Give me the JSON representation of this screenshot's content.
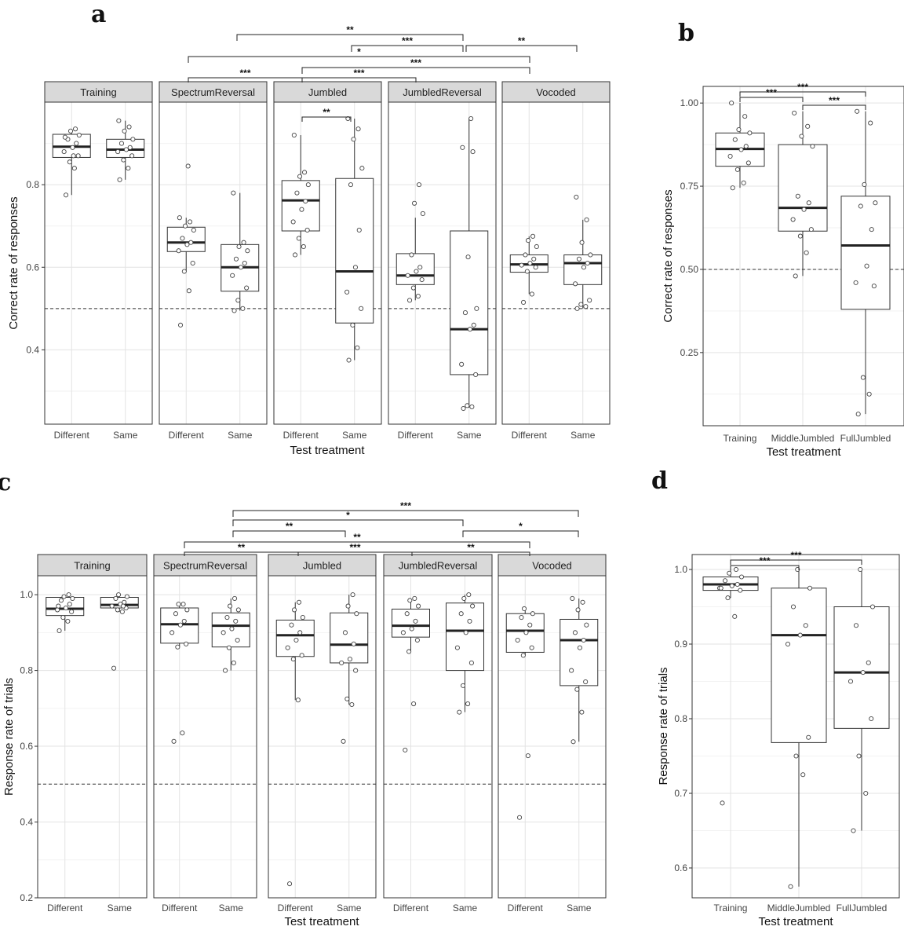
{
  "figure": {
    "panel_letters": [
      "a",
      "b",
      "c",
      "d"
    ]
  },
  "chart_data": [
    {
      "id": "a",
      "type": "boxplot",
      "panel_label": "a",
      "xlabel": "Test treatment",
      "ylabel": "Correct rate of responses",
      "ylim": [
        0.22,
        1.0
      ],
      "yticks": [
        0.4,
        0.6,
        0.8
      ],
      "yticklabels": [
        "0.4",
        "0.6",
        "0.8"
      ],
      "reference_line": 0.5,
      "grid": true,
      "facets": [
        {
          "name": "Training",
          "groups": [
            {
              "label": "Different",
              "q1": 0.866,
              "median": 0.892,
              "q3": 0.922,
              "whisker_low": 0.775,
              "whisker_high": 0.935,
              "points": [
                0.775,
                0.84,
                0.855,
                0.87,
                0.88,
                0.89,
                0.9,
                0.91,
                0.92,
                0.93,
                0.935,
                0.915,
                0.87
              ]
            },
            {
              "label": "Same",
              "q1": 0.866,
              "median": 0.885,
              "q3": 0.91,
              "whisker_low": 0.812,
              "whisker_high": 0.955,
              "points": [
                0.812,
                0.84,
                0.86,
                0.87,
                0.88,
                0.885,
                0.89,
                0.9,
                0.91,
                0.93,
                0.94,
                0.955
              ]
            }
          ]
        },
        {
          "name": "SpectrumReversal",
          "groups": [
            {
              "label": "Different",
              "q1": 0.638,
              "median": 0.66,
              "q3": 0.697,
              "whisker_low": 0.59,
              "whisker_high": 0.72,
              "points": [
                0.46,
                0.543,
                0.59,
                0.61,
                0.64,
                0.655,
                0.66,
                0.67,
                0.69,
                0.7,
                0.71,
                0.72,
                0.845
              ]
            },
            {
              "label": "Same",
              "q1": 0.542,
              "median": 0.6,
              "q3": 0.655,
              "whisker_low": 0.495,
              "whisker_high": 0.78,
              "points": [
                0.495,
                0.5,
                0.52,
                0.55,
                0.58,
                0.6,
                0.61,
                0.62,
                0.64,
                0.65,
                0.66,
                0.78
              ]
            }
          ]
        },
        {
          "name": "Jumbled",
          "groups": [
            {
              "label": "Different",
              "q1": 0.688,
              "median": 0.762,
              "q3": 0.81,
              "whisker_low": 0.63,
              "whisker_high": 0.92,
              "points": [
                0.63,
                0.65,
                0.67,
                0.69,
                0.71,
                0.74,
                0.76,
                0.78,
                0.8,
                0.82,
                0.83,
                0.92
              ]
            },
            {
              "label": "Same",
              "q1": 0.465,
              "median": 0.59,
              "q3": 0.815,
              "whisker_low": 0.375,
              "whisker_high": 0.96,
              "points": [
                0.375,
                0.405,
                0.46,
                0.5,
                0.54,
                0.6,
                0.69,
                0.8,
                0.84,
                0.91,
                0.935,
                0.96
              ]
            }
          ]
        },
        {
          "name": "JumbledReversal",
          "groups": [
            {
              "label": "Different",
              "q1": 0.558,
              "median": 0.58,
              "q3": 0.633,
              "whisker_low": 0.52,
              "whisker_high": 0.72,
              "points": [
                0.52,
                0.53,
                0.55,
                0.57,
                0.58,
                0.59,
                0.6,
                0.63,
                0.73,
                0.755,
                0.8
              ]
            },
            {
              "label": "Same",
              "q1": 0.34,
              "median": 0.45,
              "q3": 0.688,
              "whisker_low": 0.26,
              "whisker_high": 0.96,
              "points": [
                0.258,
                0.262,
                0.265,
                0.34,
                0.365,
                0.45,
                0.46,
                0.49,
                0.5,
                0.625,
                0.88,
                0.89,
                0.96
              ]
            }
          ]
        },
        {
          "name": "Vocoded",
          "groups": [
            {
              "label": "Different",
              "q1": 0.588,
              "median": 0.607,
              "q3": 0.63,
              "whisker_low": 0.535,
              "whisker_high": 0.675,
              "points": [
                0.515,
                0.535,
                0.59,
                0.6,
                0.605,
                0.61,
                0.62,
                0.63,
                0.65,
                0.665,
                0.675
              ]
            },
            {
              "label": "Same",
              "q1": 0.558,
              "median": 0.61,
              "q3": 0.63,
              "whisker_low": 0.5,
              "whisker_high": 0.715,
              "points": [
                0.5,
                0.505,
                0.51,
                0.52,
                0.56,
                0.6,
                0.61,
                0.62,
                0.63,
                0.66,
                0.715,
                0.77
              ]
            }
          ]
        }
      ],
      "significance": [
        "**",
        "***",
        "**",
        "*",
        "***",
        "***",
        "***",
        "**"
      ]
    },
    {
      "id": "b",
      "type": "boxplot",
      "panel_label": "b",
      "xlabel": "Test treatment",
      "ylabel": "Correct rate of responses",
      "ylim": [
        0.03,
        1.05
      ],
      "yticks": [
        0.25,
        0.5,
        0.75,
        1.0
      ],
      "yticklabels": [
        "0.25",
        "0.50",
        "0.75",
        "1.00"
      ],
      "reference_line": 0.5,
      "grid": true,
      "groups": [
        {
          "label": "Training",
          "q1": 0.81,
          "median": 0.862,
          "q3": 0.91,
          "whisker_low": 0.745,
          "whisker_high": 1.0,
          "points": [
            0.745,
            0.76,
            0.8,
            0.82,
            0.84,
            0.86,
            0.87,
            0.89,
            0.91,
            0.92,
            0.96,
            1.0
          ]
        },
        {
          "label": "MiddleJumbled",
          "q1": 0.615,
          "median": 0.685,
          "q3": 0.875,
          "whisker_low": 0.48,
          "whisker_high": 0.975,
          "points": [
            0.48,
            0.55,
            0.6,
            0.62,
            0.65,
            0.68,
            0.7,
            0.72,
            0.87,
            0.9,
            0.93,
            0.97
          ]
        },
        {
          "label": "FullJumbled",
          "q1": 0.38,
          "median": 0.572,
          "q3": 0.72,
          "whisker_low": 0.065,
          "whisker_high": 0.975,
          "points": [
            0.065,
            0.125,
            0.175,
            0.45,
            0.46,
            0.51,
            0.62,
            0.69,
            0.7,
            0.755,
            0.94,
            0.975
          ]
        }
      ],
      "significance": [
        "***",
        "***",
        "***"
      ]
    },
    {
      "id": "c",
      "type": "boxplot",
      "panel_label": "c",
      "xlabel": "Test treatment",
      "ylabel": "Response rate of trials",
      "ylim": [
        0.2,
        1.05
      ],
      "yticks": [
        0.2,
        0.4,
        0.6,
        0.8,
        1.0
      ],
      "yticklabels": [
        "0.2",
        "0.4",
        "0.6",
        "0.8",
        "1.0"
      ],
      "reference_line": 0.5,
      "grid": true,
      "facets": [
        {
          "name": "Training",
          "groups": [
            {
              "label": "Different",
              "q1": 0.945,
              "median": 0.963,
              "q3": 0.993,
              "whisker_low": 0.905,
              "whisker_high": 1.0,
              "points": [
                0.905,
                0.93,
                0.94,
                0.955,
                0.96,
                0.965,
                0.975,
                0.985,
                0.99,
                0.995,
                1.0,
                0.97
              ]
            },
            {
              "label": "Same",
              "q1": 0.965,
              "median": 0.973,
              "q3": 0.993,
              "whisker_low": 0.955,
              "whisker_high": 1.0,
              "points": [
                0.806,
                0.955,
                0.96,
                0.965,
                0.97,
                0.975,
                0.98,
                0.99,
                0.995,
                1.0,
                0.97
              ]
            }
          ]
        },
        {
          "name": "SpectrumReversal",
          "groups": [
            {
              "label": "Different",
              "q1": 0.872,
              "median": 0.922,
              "q3": 0.965,
              "whisker_low": 0.862,
              "whisker_high": 0.975,
              "points": [
                0.613,
                0.635,
                0.862,
                0.87,
                0.9,
                0.92,
                0.93,
                0.95,
                0.96,
                0.975,
                0.975
              ]
            },
            {
              "label": "Same",
              "q1": 0.862,
              "median": 0.918,
              "q3": 0.952,
              "whisker_low": 0.8,
              "whisker_high": 0.99,
              "points": [
                0.8,
                0.82,
                0.86,
                0.88,
                0.9,
                0.91,
                0.93,
                0.94,
                0.96,
                0.97,
                0.99
              ]
            }
          ]
        },
        {
          "name": "Jumbled",
          "groups": [
            {
              "label": "Different",
              "q1": 0.837,
              "median": 0.893,
              "q3": 0.933,
              "whisker_low": 0.722,
              "whisker_high": 0.98,
              "points": [
                0.237,
                0.722,
                0.83,
                0.84,
                0.86,
                0.88,
                0.9,
                0.92,
                0.94,
                0.96,
                0.98
              ]
            },
            {
              "label": "Same",
              "q1": 0.82,
              "median": 0.868,
              "q3": 0.952,
              "whisker_low": 0.71,
              "whisker_high": 1.0,
              "points": [
                0.613,
                0.71,
                0.725,
                0.8,
                0.82,
                0.83,
                0.87,
                0.9,
                0.95,
                0.97,
                1.0
              ]
            }
          ]
        },
        {
          "name": "JumbledReversal",
          "groups": [
            {
              "label": "Different",
              "q1": 0.888,
              "median": 0.918,
              "q3": 0.962,
              "whisker_low": 0.85,
              "whisker_high": 0.99,
              "points": [
                0.59,
                0.712,
                0.85,
                0.88,
                0.9,
                0.91,
                0.93,
                0.95,
                0.97,
                0.985,
                0.99
              ]
            },
            {
              "label": "Same",
              "q1": 0.8,
              "median": 0.905,
              "q3": 0.978,
              "whisker_low": 0.69,
              "whisker_high": 1.0,
              "points": [
                0.69,
                0.712,
                0.76,
                0.82,
                0.86,
                0.9,
                0.93,
                0.95,
                0.97,
                0.99,
                1.0
              ]
            }
          ]
        },
        {
          "name": "Vocoded",
          "groups": [
            {
              "label": "Different",
              "q1": 0.848,
              "median": 0.905,
              "q3": 0.95,
              "whisker_low": 0.84,
              "whisker_high": 0.963,
              "points": [
                0.412,
                0.575,
                0.84,
                0.86,
                0.88,
                0.9,
                0.92,
                0.94,
                0.95,
                0.963
              ]
            },
            {
              "label": "Same",
              "q1": 0.76,
              "median": 0.88,
              "q3": 0.935,
              "whisker_low": 0.612,
              "whisker_high": 0.99,
              "points": [
                0.612,
                0.69,
                0.75,
                0.77,
                0.8,
                0.86,
                0.88,
                0.9,
                0.92,
                0.96,
                0.98,
                0.99
              ]
            }
          ]
        }
      ],
      "significance": [
        "***",
        "*",
        "**",
        "*",
        "**",
        "**",
        "***",
        "**"
      ]
    },
    {
      "id": "d",
      "type": "boxplot",
      "panel_label": "d",
      "xlabel": "Test treatment",
      "ylabel": "Response rate of trials",
      "ylim": [
        0.56,
        1.02
      ],
      "yticks": [
        0.6,
        0.7,
        0.8,
        0.9,
        1.0
      ],
      "yticklabels": [
        "0.6",
        "0.7",
        "0.8",
        "0.9",
        "1.0"
      ],
      "grid": true,
      "groups": [
        {
          "label": "Training",
          "q1": 0.972,
          "median": 0.98,
          "q3": 0.99,
          "whisker_low": 0.962,
          "whisker_high": 1.0,
          "points": [
            0.687,
            0.937,
            0.962,
            0.972,
            0.975,
            0.978,
            0.98,
            0.985,
            0.99,
            0.995,
            1.0,
            0.975
          ]
        },
        {
          "label": "MiddleJumbled",
          "q1": 0.768,
          "median": 0.912,
          "q3": 0.975,
          "whisker_low": 0.575,
          "whisker_high": 1.0,
          "points": [
            0.575,
            0.725,
            0.75,
            0.775,
            0.9,
            0.912,
            0.925,
            0.95,
            0.975,
            1.0
          ]
        },
        {
          "label": "FullJumbled",
          "q1": 0.787,
          "median": 0.862,
          "q3": 0.95,
          "whisker_low": 0.65,
          "whisker_high": 1.0,
          "points": [
            0.65,
            0.7,
            0.75,
            0.8,
            0.85,
            0.862,
            0.875,
            0.925,
            0.95,
            1.0
          ]
        }
      ],
      "significance": [
        "***",
        "***"
      ]
    }
  ]
}
